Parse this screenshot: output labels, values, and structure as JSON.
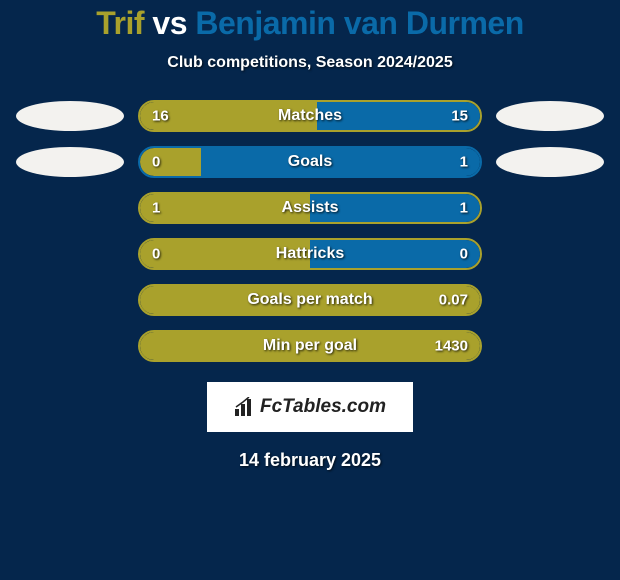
{
  "colors": {
    "background": "#05264c",
    "player1": "#a9a12c",
    "player2": "#0a6aa8",
    "vs": "#ffffff",
    "text": "#ffffff",
    "ellipse": "#f3f2ef",
    "logo_bg": "#ffffff",
    "logo_text": "#222222"
  },
  "title": {
    "player1": "Trif",
    "vs": "vs",
    "player2": "Benjamin van Durmen"
  },
  "subtitle": "Club competitions, Season 2024/2025",
  "stats": [
    {
      "label": "Matches",
      "left_val": "16",
      "right_val": "15",
      "left_pct": 52,
      "right_pct": 48,
      "border_color": "#a9a12c",
      "show_ellipse": true
    },
    {
      "label": "Goals",
      "left_val": "0",
      "right_val": "1",
      "left_pct": 18,
      "right_pct": 82,
      "border_color": "#0a6aa8",
      "show_ellipse": true
    },
    {
      "label": "Assists",
      "left_val": "1",
      "right_val": "1",
      "left_pct": 50,
      "right_pct": 50,
      "border_color": "#a9a12c",
      "show_ellipse": false
    },
    {
      "label": "Hattricks",
      "left_val": "0",
      "right_val": "0",
      "left_pct": 50,
      "right_pct": 50,
      "border_color": "#a9a12c",
      "show_ellipse": false
    },
    {
      "label": "Goals per match",
      "left_val": "",
      "right_val": "0.07",
      "left_pct": 0,
      "right_pct": 0,
      "full_color": "#a9a12c",
      "border_color": "#a9a12c",
      "show_ellipse": false
    },
    {
      "label": "Min per goal",
      "left_val": "",
      "right_val": "1430",
      "left_pct": 0,
      "right_pct": 0,
      "full_color": "#a9a12c",
      "border_color": "#a9a12c",
      "show_ellipse": false
    }
  ],
  "logo": "FcTables.com",
  "date": "14 february 2025"
}
